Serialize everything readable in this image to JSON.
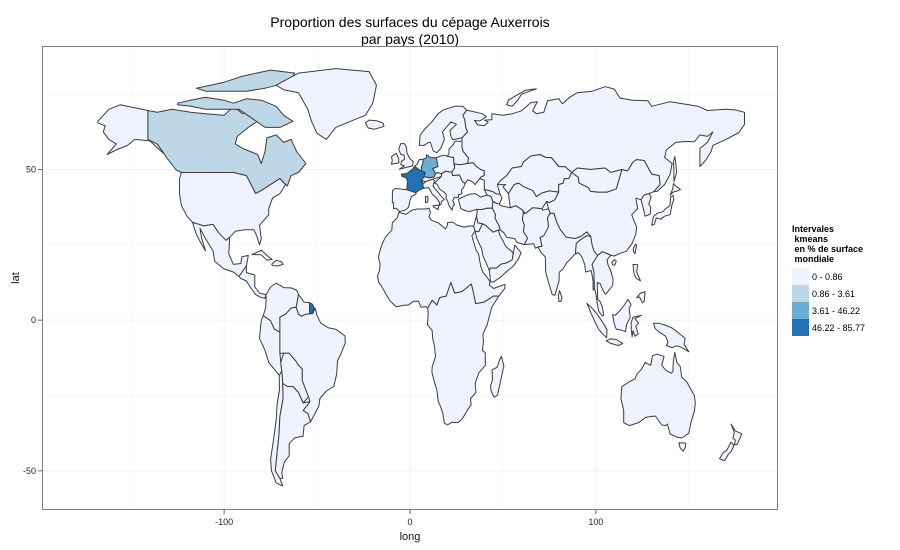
{
  "title_line1": "Proportion des surfaces du cépage Auxerrois",
  "title_line2": "par pays (2010)",
  "axes": {
    "xlabel": "long",
    "ylabel": "lat",
    "x_ticks": [
      {
        "value": -100,
        "label": "-100"
      },
      {
        "value": 0,
        "label": "0"
      },
      {
        "value": 100,
        "label": "100"
      }
    ],
    "y_ticks": [
      {
        "value": 50,
        "label": "50"
      },
      {
        "value": 0,
        "label": "0"
      },
      {
        "value": -50,
        "label": "-50"
      }
    ],
    "xlim": [
      -198,
      198
    ],
    "ylim": [
      -63,
      91
    ]
  },
  "legend": {
    "title_lines": [
      "Intervales",
      " kmeans",
      " en % de surface",
      " mondiale"
    ],
    "items": [
      {
        "label": "0 - 0.86",
        "color": "#eff3ff"
      },
      {
        "label": "0.86 - 3.61",
        "color": "#bdd7e7"
      },
      {
        "label": "3.61 - 46.22",
        "color": "#6baed6"
      },
      {
        "label": "46.22 - 85.77",
        "color": "#2171b5"
      }
    ]
  },
  "colors": {
    "panel_background": "#ffffff",
    "grid_major": "#f0f0f0",
    "grid_minor": "#f7f7f7",
    "border": "#7f7f7f",
    "country_stroke": "#3c3c3c"
  }
}
